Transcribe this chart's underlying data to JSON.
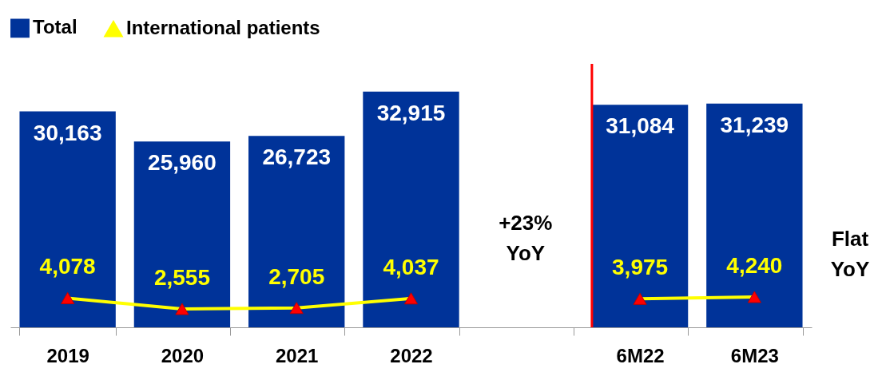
{
  "chart_data": {
    "type": "bar",
    "categories": [
      "2019",
      "2020",
      "2021",
      "2022",
      null,
      "6M22",
      "6M23"
    ],
    "series": [
      {
        "name": "Total",
        "color": "#003399",
        "values": [
          30163,
          25960,
          26723,
          32915,
          null,
          31084,
          31239
        ],
        "value_labels": [
          "30,163",
          "25,960",
          "26,723",
          "32,915",
          null,
          "31,084",
          "31,239"
        ]
      },
      {
        "name": "International patients",
        "type": "line",
        "color": "#ffff00",
        "values": [
          4078,
          2555,
          2705,
          4037,
          null,
          3975,
          4240
        ],
        "value_labels": [
          "4,078",
          "2,555",
          "2,705",
          "4,037",
          null,
          "3,975",
          "4,240"
        ]
      }
    ],
    "marker": "triangle",
    "legend": "top",
    "tick_labels": "x",
    "ref_lines": [
      {
        "axis": "x",
        "value": "6M22",
        "color": "#ff0000"
      }
    ],
    "annotations": [
      "+23% YoY",
      "Flat YoY"
    ]
  }
}
